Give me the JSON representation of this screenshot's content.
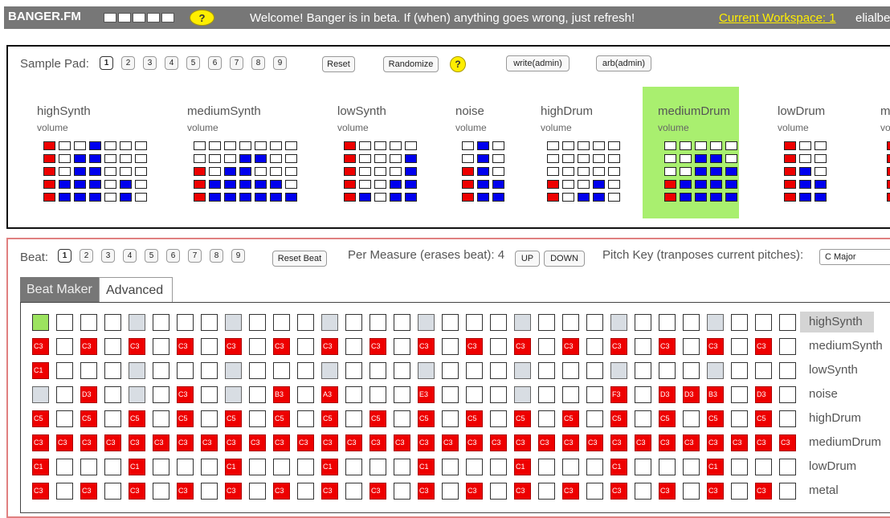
{
  "topbar": {
    "brand": "BANGER.FM",
    "help": "?",
    "welcome": "Welcome! Banger is in beta. If (when) anything goes wrong, just refresh!",
    "workspace": "Current Workspace: 1",
    "user": "elialbe"
  },
  "samplepad": {
    "label": "Sample Pad:",
    "numbers": [
      "1",
      "2",
      "3",
      "4",
      "5",
      "6",
      "7",
      "8",
      "9"
    ],
    "reset": "Reset",
    "randomize": "Randomize",
    "help": "?",
    "write": "write(admin)",
    "arb": "arb(admin)",
    "instruments": [
      {
        "name": "highSynth",
        "volume": "volume",
        "rows": [
          "r--b---",
          "r-bb---",
          "r-bb---",
          "rbbb-b-",
          "rbbb-b-"
        ]
      },
      {
        "name": "mediumSynth",
        "volume": "volume",
        "rows": [
          "-------",
          "---bb--",
          "r-bb---",
          "rbbbbb-",
          "rbbbbbb"
        ]
      },
      {
        "name": "lowSynth",
        "volume": "volume",
        "rows": [
          "r----",
          "r---b",
          "r---b",
          "r--bb",
          "rb-bb"
        ]
      },
      {
        "name": "noise",
        "volume": "volume",
        "rows": [
          "-b-",
          "-b-",
          "rb-",
          "rbb",
          "rbb"
        ]
      },
      {
        "name": "highDrum",
        "volume": "volume",
        "rows": [
          "-----",
          "-----",
          "-----",
          "r--b-",
          "r-bb-"
        ]
      },
      {
        "name": "mediumDrum",
        "volume": "volume",
        "rows": [
          "-----",
          "--bb-",
          "--bbb",
          "rbbbb",
          "rbbbb"
        ]
      },
      {
        "name": "lowDrum",
        "volume": "volume",
        "rows": [
          "r--",
          "r--",
          "rb-",
          "rbb",
          "rbb"
        ]
      },
      {
        "name": "metal",
        "volume": "volume",
        "rows": [
          "r",
          "r",
          "r",
          "r",
          "r"
        ]
      }
    ]
  },
  "beat": {
    "label": "Beat:",
    "numbers": [
      "1",
      "2",
      "3",
      "4",
      "5",
      "6",
      "7",
      "8",
      "9"
    ],
    "reset": "Reset Beat",
    "per_measure": "Per Measure (erases beat): 4",
    "up": "UP",
    "down": "DOWN",
    "pitch_key_label": "Pitch Key (tranposes current pitches):",
    "key_value": "C Major",
    "tabs": [
      "Beat Maker",
      "Advanced"
    ],
    "rows": [
      {
        "label": "highSynth",
        "cells": [
          {
            "s": "a"
          },
          {},
          {},
          {},
          {
            "s": "g"
          },
          {},
          {},
          {},
          {
            "s": "g"
          },
          {},
          {},
          {},
          {
            "s": "g"
          },
          {},
          {},
          {},
          {
            "s": "g"
          },
          {},
          {},
          {},
          {
            "s": "g"
          },
          {},
          {},
          {},
          {
            "s": "g"
          },
          {},
          {},
          {},
          {
            "s": "g"
          },
          {},
          {},
          {}
        ]
      },
      {
        "label": "mediumSynth",
        "cells": [
          {
            "p": "C3"
          },
          {},
          {
            "p": "C3"
          },
          {},
          {
            "p": "C3"
          },
          {},
          {
            "p": "C3"
          },
          {},
          {
            "p": "C3"
          },
          {},
          {
            "p": "C3"
          },
          {},
          {
            "p": "C3"
          },
          {},
          {
            "p": "C3"
          },
          {},
          {
            "p": "C3"
          },
          {},
          {
            "p": "C3"
          },
          {},
          {
            "p": "C3"
          },
          {},
          {
            "p": "C3"
          },
          {},
          {
            "p": "C3"
          },
          {},
          {
            "p": "C3"
          },
          {},
          {
            "p": "C3"
          },
          {},
          {
            "p": "C3"
          },
          {}
        ]
      },
      {
        "label": "lowSynth",
        "cells": [
          {
            "p": "C1"
          },
          {},
          {},
          {},
          {
            "s": "g"
          },
          {},
          {},
          {},
          {
            "s": "g"
          },
          {},
          {},
          {},
          {
            "s": "g"
          },
          {},
          {},
          {},
          {
            "s": "g"
          },
          {},
          {},
          {},
          {
            "s": "g"
          },
          {},
          {},
          {},
          {
            "s": "g"
          },
          {},
          {},
          {},
          {
            "s": "g"
          },
          {},
          {},
          {}
        ]
      },
      {
        "label": "noise",
        "cells": [
          {
            "s": "g"
          },
          {},
          {
            "p": "D3"
          },
          {},
          {
            "s": "g"
          },
          {},
          {
            "p": "C3"
          },
          {},
          {
            "s": "g"
          },
          {},
          {
            "p": "B3"
          },
          {},
          {
            "p": "A3"
          },
          {},
          {},
          {},
          {
            "p": "E3"
          },
          {},
          {},
          {},
          {
            "s": "g"
          },
          {},
          {},
          {},
          {
            "p": "F3"
          },
          {},
          {
            "p": "D3"
          },
          {
            "p": "D3"
          },
          {
            "p": "B3"
          },
          {},
          {
            "p": "D3"
          },
          {}
        ]
      },
      {
        "label": "highDrum",
        "cells": [
          {
            "p": "C5"
          },
          {},
          {
            "p": "C5"
          },
          {},
          {
            "p": "C5"
          },
          {},
          {
            "p": "C5"
          },
          {},
          {
            "p": "C5"
          },
          {},
          {
            "p": "C5"
          },
          {},
          {
            "p": "C5"
          },
          {},
          {
            "p": "C5"
          },
          {},
          {
            "p": "C5"
          },
          {},
          {
            "p": "C5"
          },
          {},
          {
            "p": "C5"
          },
          {},
          {
            "p": "C5"
          },
          {},
          {
            "p": "C5"
          },
          {},
          {
            "p": "C5"
          },
          {},
          {
            "p": "C5"
          },
          {},
          {
            "p": "C5"
          },
          {}
        ]
      },
      {
        "label": "mediumDrum",
        "cells": [
          {
            "p": "C3"
          },
          {
            "p": "C3"
          },
          {
            "p": "C3"
          },
          {
            "p": "C3"
          },
          {
            "p": "C3"
          },
          {
            "p": "C3"
          },
          {
            "p": "C3"
          },
          {
            "p": "C3"
          },
          {
            "p": "C3"
          },
          {
            "p": "C3"
          },
          {
            "p": "C3"
          },
          {
            "p": "C3"
          },
          {
            "p": "C3"
          },
          {
            "p": "C3"
          },
          {
            "p": "C3"
          },
          {
            "p": "C3"
          },
          {
            "p": "C3"
          },
          {
            "p": "C3"
          },
          {
            "p": "C3"
          },
          {
            "p": "C3"
          },
          {
            "p": "C3"
          },
          {
            "p": "C3"
          },
          {
            "p": "C3"
          },
          {
            "p": "C3"
          },
          {
            "p": "C3"
          },
          {
            "p": "C3"
          },
          {
            "p": "C3"
          },
          {
            "p": "C3"
          },
          {
            "p": "C3"
          },
          {
            "p": "C3"
          },
          {
            "p": "C3"
          },
          {
            "p": "C3"
          }
        ]
      },
      {
        "label": "lowDrum",
        "cells": [
          {
            "p": "C1"
          },
          {},
          {},
          {},
          {
            "p": "C1"
          },
          {},
          {},
          {},
          {
            "p": "C1"
          },
          {},
          {},
          {},
          {
            "p": "C1"
          },
          {},
          {},
          {},
          {
            "p": "C1"
          },
          {},
          {},
          {},
          {
            "p": "C1"
          },
          {},
          {},
          {},
          {
            "p": "C1"
          },
          {},
          {},
          {},
          {
            "p": "C1"
          },
          {},
          {},
          {}
        ]
      },
      {
        "label": "metal",
        "cells": [
          {
            "p": "C3"
          },
          {},
          {
            "p": "C3"
          },
          {},
          {
            "p": "C3"
          },
          {},
          {
            "p": "C3"
          },
          {},
          {
            "p": "C3"
          },
          {},
          {
            "p": "C3"
          },
          {},
          {
            "p": "C3"
          },
          {},
          {
            "p": "C3"
          },
          {},
          {
            "p": "C3"
          },
          {},
          {
            "p": "C3"
          },
          {},
          {
            "p": "C3"
          },
          {},
          {
            "p": "C3"
          },
          {},
          {
            "p": "C3"
          },
          {},
          {
            "p": "C3"
          },
          {},
          {
            "p": "C3"
          },
          {},
          {
            "p": "C3"
          },
          {}
        ]
      }
    ]
  }
}
